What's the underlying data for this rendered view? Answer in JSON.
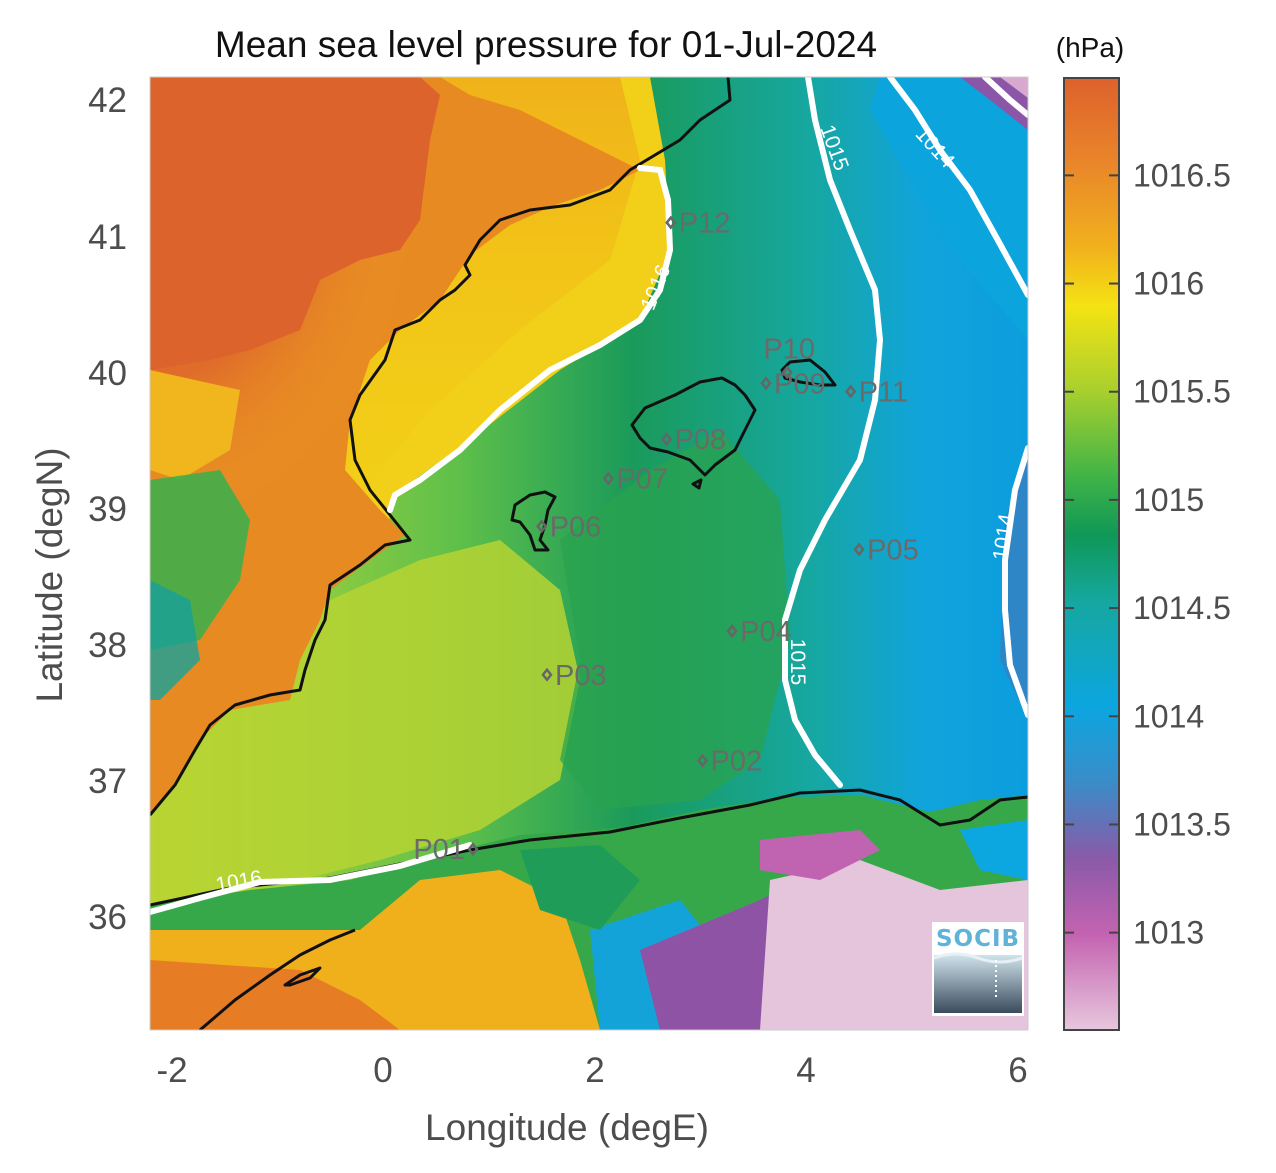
{
  "title": "Mean sea level pressure for 01-Jul-2024",
  "xlabel": "Longitude (degE)",
  "ylabel": "Latitude (degN)",
  "x_ticks": [
    "-2",
    "0",
    "2",
    "4",
    "6"
  ],
  "y_ticks": [
    "42",
    "41",
    "40",
    "39",
    "38",
    "37",
    "36"
  ],
  "colorbar": {
    "unit": "(hPa)",
    "ticks": [
      "1016.5",
      "1016",
      "1015.5",
      "1015",
      "1014.5",
      "1014",
      "1013.5",
      "1013"
    ],
    "range": [
      1012.55,
      1016.95
    ]
  },
  "contour_labels": [
    "1016",
    "1016",
    "1015",
    "1015",
    "1014",
    "1014"
  ],
  "stations": [
    {
      "name": "P01",
      "lon": 0.85,
      "lat": 36.5
    },
    {
      "name": "P02",
      "lon": 3.02,
      "lat": 37.15
    },
    {
      "name": "P03",
      "lon": 1.55,
      "lat": 37.78
    },
    {
      "name": "P04",
      "lon": 3.3,
      "lat": 38.1
    },
    {
      "name": "P05",
      "lon": 4.5,
      "lat": 38.7
    },
    {
      "name": "P06",
      "lon": 1.5,
      "lat": 38.87
    },
    {
      "name": "P07",
      "lon": 2.13,
      "lat": 39.22
    },
    {
      "name": "P08",
      "lon": 2.68,
      "lat": 39.51
    },
    {
      "name": "P09",
      "lon": 3.62,
      "lat": 39.92
    },
    {
      "name": "P10",
      "lon": 3.82,
      "lat": 40.0
    },
    {
      "name": "P11",
      "lon": 4.42,
      "lat": 39.86
    },
    {
      "name": "P12",
      "lon": 2.72,
      "lat": 41.1
    }
  ],
  "logo": "SOCIB"
}
